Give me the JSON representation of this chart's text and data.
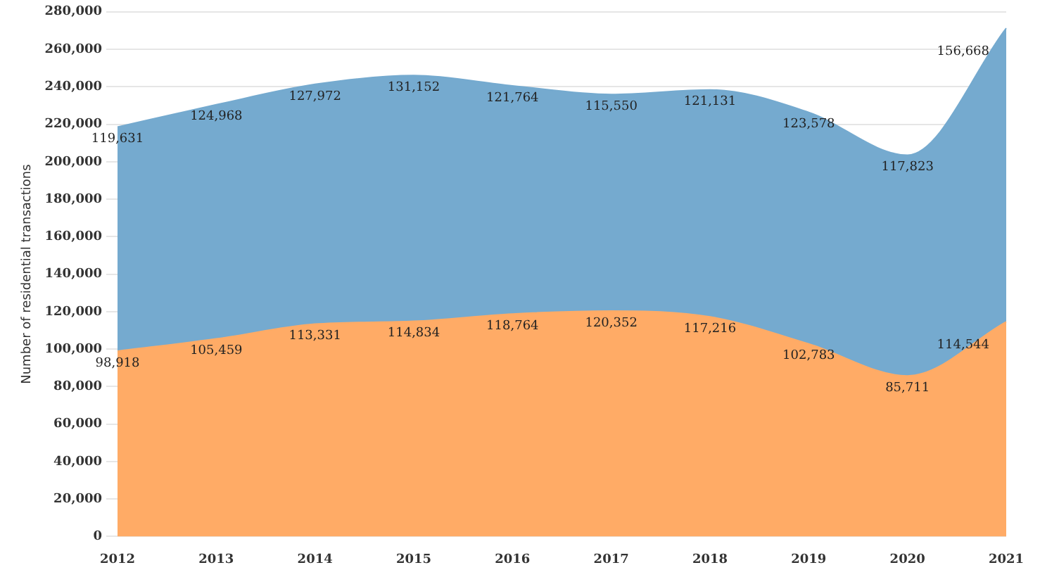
{
  "chart_data": {
    "type": "area",
    "stacked": true,
    "ylabel": "Number of residential transactions",
    "categories": [
      "2012",
      "2013",
      "2014",
      "2015",
      "2016",
      "2017",
      "2018",
      "2019",
      "2020",
      "2021"
    ],
    "series": [
      {
        "color": "#ffab66",
        "values": [
          98918,
          105459,
          113331,
          114834,
          118764,
          120352,
          117216,
          102783,
          85711,
          114544
        ],
        "value_labels": [
          "98,918",
          "105,459",
          "113,331",
          "114,834",
          "118,764",
          "120,352",
          "117,216",
          "102,783",
          "85,711",
          "114,544"
        ]
      },
      {
        "color": "#75aacf",
        "values": [
          119631,
          124968,
          127972,
          131152,
          121764,
          115550,
          121131,
          123578,
          117823,
          156668
        ],
        "value_labels": [
          "119,631",
          "124,968",
          "127,972",
          "131,152",
          "121,764",
          "115,550",
          "121,131",
          "123,578",
          "117,823",
          "156,668"
        ]
      }
    ],
    "ylim": [
      0,
      280000
    ],
    "yticks": [
      {
        "value": 0,
        "label": "0"
      },
      {
        "value": 20000,
        "label": "20,000"
      },
      {
        "value": 40000,
        "label": "40,000"
      },
      {
        "value": 60000,
        "label": "60,000"
      },
      {
        "value": 80000,
        "label": "80,000"
      },
      {
        "value": 100000,
        "label": "100,000"
      },
      {
        "value": 120000,
        "label": "120,000"
      },
      {
        "value": 140000,
        "label": "140,000"
      },
      {
        "value": 160000,
        "label": "160,000"
      },
      {
        "value": 180000,
        "label": "180,000"
      },
      {
        "value": 200000,
        "label": "200,000"
      },
      {
        "value": 220000,
        "label": "220,000"
      },
      {
        "value": 240000,
        "label": "240,000"
      },
      {
        "value": 260000,
        "label": "260,000"
      },
      {
        "value": 280000,
        "label": "280,000"
      }
    ],
    "grid": "y",
    "legend": false
  }
}
